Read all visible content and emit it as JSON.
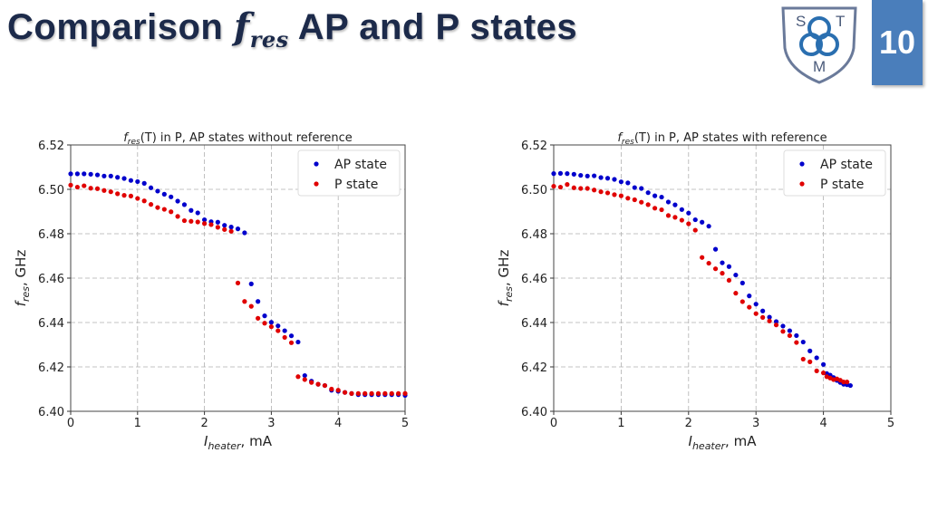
{
  "slide": {
    "title_before": "Comparison ",
    "title_f": "f",
    "title_sub": "res",
    "title_after": " AP and P states",
    "page_number": "10",
    "logo_letters": [
      "S",
      "T",
      "M"
    ]
  },
  "colors": {
    "ap": "#0000cc",
    "p": "#e00000",
    "title": "#1c2a4a",
    "page_box": "#4a7ebb"
  },
  "chart_data": [
    {
      "type": "scatter",
      "title_f": "f",
      "title_sub": "res",
      "title_rest": "(T) in P, AP states without reference",
      "xlabel_main": "I",
      "xlabel_sub": "heater",
      "xlabel_unit": ", mA",
      "ylabel_main": "f",
      "ylabel_sub": "res",
      "ylabel_unit": ", GHz",
      "xlim": [
        0,
        5
      ],
      "ylim": [
        6.4,
        6.52
      ],
      "xticks": [
        "0",
        "1",
        "2",
        "3",
        "4",
        "5"
      ],
      "yticks": [
        "6.40",
        "6.42",
        "6.44",
        "6.46",
        "6.48",
        "6.50",
        "6.52"
      ],
      "grid": true,
      "legend": "top-right",
      "series": [
        {
          "name": "AP state",
          "color": "#0000cc",
          "x": [
            0,
            0.1,
            0.2,
            0.3,
            0.4,
            0.5,
            0.6,
            0.7,
            0.8,
            0.9,
            1.0,
            1.1,
            1.2,
            1.3,
            1.4,
            1.5,
            1.6,
            1.7,
            1.8,
            1.9,
            2.0,
            2.1,
            2.2,
            2.3,
            2.4,
            2.5,
            2.6,
            2.7,
            2.8,
            2.9,
            3.0,
            3.1,
            3.2,
            3.3,
            3.4,
            3.5,
            3.6,
            3.7,
            3.8,
            3.9,
            4.0,
            4.1,
            4.2,
            4.3,
            4.4,
            4.5,
            4.6,
            4.7,
            4.8,
            4.9,
            5.0
          ],
          "y": [
            6.507,
            6.507,
            6.507,
            6.5068,
            6.5065,
            6.506,
            6.506,
            6.5054,
            6.5049,
            6.504,
            6.5035,
            6.5027,
            6.5007,
            6.4992,
            6.4978,
            6.4966,
            6.4947,
            6.4931,
            6.4905,
            6.4894,
            6.4863,
            6.4854,
            6.4852,
            6.4838,
            6.483,
            6.4822,
            6.4804,
            6.4574,
            6.4495,
            6.443,
            6.4401,
            6.4385,
            6.4363,
            6.434,
            6.4312,
            6.4161,
            6.4136,
            6.4122,
            6.4116,
            6.4095,
            6.409,
            6.4085,
            6.408,
            6.4075,
            6.4075,
            6.4075,
            6.4075,
            6.4075,
            6.4075,
            6.4075,
            6.4072
          ]
        },
        {
          "name": "P state",
          "color": "#e00000",
          "x": [
            0,
            0.1,
            0.2,
            0.3,
            0.4,
            0.5,
            0.6,
            0.7,
            0.8,
            0.9,
            1.0,
            1.1,
            1.2,
            1.3,
            1.4,
            1.5,
            1.6,
            1.7,
            1.8,
            1.9,
            2.0,
            2.1,
            2.2,
            2.3,
            2.4,
            2.5,
            2.6,
            2.7,
            2.8,
            2.9,
            3.0,
            3.1,
            3.2,
            3.3,
            3.4,
            3.5,
            3.6,
            3.7,
            3.8,
            3.9,
            4.0,
            4.1,
            4.2,
            4.3,
            4.4,
            4.5,
            4.6,
            4.7,
            4.8,
            4.9,
            5.0
          ],
          "y": [
            6.5019,
            6.501,
            6.5016,
            6.5005,
            6.5003,
            6.4995,
            6.4989,
            6.498,
            6.4973,
            6.497,
            6.4959,
            6.4948,
            6.4932,
            6.4918,
            6.491,
            6.4899,
            6.4878,
            6.4859,
            6.4856,
            6.4853,
            6.4846,
            6.4841,
            6.4829,
            6.4819,
            6.4811,
            6.4578,
            6.4495,
            6.4473,
            6.4419,
            6.4397,
            6.4381,
            6.4363,
            6.4333,
            6.4309,
            6.4156,
            6.4143,
            6.413,
            6.4122,
            6.4116,
            6.41,
            6.4095,
            6.4085,
            6.408,
            6.408,
            6.408,
            6.408,
            6.408,
            6.408,
            6.408,
            6.408,
            6.408
          ]
        }
      ]
    },
    {
      "type": "scatter",
      "title_f": "f",
      "title_sub": "res",
      "title_rest": "(T) in P, AP states with reference",
      "xlabel_main": "I",
      "xlabel_sub": "heater",
      "xlabel_unit": ", mA",
      "ylabel_main": "f",
      "ylabel_sub": "res",
      "ylabel_unit": ", GHz",
      "xlim": [
        0,
        5
      ],
      "ylim": [
        6.4,
        6.52
      ],
      "xticks": [
        "0",
        "1",
        "2",
        "3",
        "4",
        "5"
      ],
      "yticks": [
        "6.40",
        "6.42",
        "6.44",
        "6.46",
        "6.48",
        "6.50",
        "6.52"
      ],
      "grid": true,
      "legend": "top-right",
      "series": [
        {
          "name": "AP state",
          "color": "#0000cc",
          "x": [
            0,
            0.1,
            0.2,
            0.3,
            0.4,
            0.5,
            0.6,
            0.7,
            0.8,
            0.9,
            1.0,
            1.1,
            1.2,
            1.3,
            1.4,
            1.5,
            1.6,
            1.7,
            1.8,
            1.9,
            2.0,
            2.1,
            2.2,
            2.3,
            2.4,
            2.5,
            2.6,
            2.7,
            2.8,
            2.9,
            3.0,
            3.1,
            3.2,
            3.3,
            3.4,
            3.5,
            3.6,
            3.7,
            3.8,
            3.9,
            4.0,
            4.05,
            4.1,
            4.15,
            4.2,
            4.25,
            4.3,
            4.35,
            4.4
          ],
          "y": [
            6.5071,
            6.5072,
            6.5071,
            6.5068,
            6.5063,
            6.506,
            6.5061,
            6.5053,
            6.505,
            6.5045,
            6.5034,
            6.5029,
            6.5008,
            6.5004,
            6.4985,
            6.4971,
            6.4965,
            6.4943,
            6.493,
            6.4909,
            6.4893,
            6.4863,
            6.4852,
            6.4834,
            6.473,
            6.4669,
            6.4652,
            6.4614,
            6.4578,
            6.452,
            6.4483,
            6.4452,
            6.4424,
            6.4404,
            6.4384,
            6.4363,
            6.4341,
            6.4312,
            6.4272,
            6.4241,
            6.4211,
            6.417,
            6.4163,
            6.4152,
            6.4139,
            6.413,
            6.4122,
            6.412,
            6.4116
          ]
        },
        {
          "name": "P state",
          "color": "#e00000",
          "x": [
            0,
            0.1,
            0.2,
            0.3,
            0.4,
            0.5,
            0.6,
            0.7,
            0.8,
            0.9,
            1.0,
            1.1,
            1.2,
            1.3,
            1.4,
            1.5,
            1.6,
            1.7,
            1.8,
            1.9,
            2.0,
            2.1,
            2.2,
            2.3,
            2.4,
            2.5,
            2.6,
            2.7,
            2.8,
            2.9,
            3.0,
            3.1,
            3.2,
            3.3,
            3.4,
            3.5,
            3.6,
            3.7,
            3.8,
            3.9,
            4.0,
            4.05,
            4.1,
            4.15,
            4.2,
            4.25,
            4.3,
            4.35
          ],
          "y": [
            6.5014,
            6.501,
            6.5022,
            6.5007,
            6.5004,
            6.5004,
            6.4997,
            6.4989,
            6.4984,
            6.4976,
            6.4971,
            6.496,
            6.4953,
            6.4942,
            6.4931,
            6.4915,
            6.4908,
            6.4882,
            6.4874,
            6.4861,
            6.4845,
            6.4816,
            6.4693,
            6.4667,
            6.4642,
            6.4622,
            6.459,
            6.4532,
            6.4494,
            6.4469,
            6.444,
            6.4423,
            6.4407,
            6.4389,
            6.436,
            6.4341,
            6.431,
            6.4235,
            6.4223,
            6.4182,
            6.4173,
            6.4156,
            6.415,
            6.4143,
            6.4146,
            6.414,
            6.4132,
            6.4132
          ]
        }
      ]
    }
  ]
}
